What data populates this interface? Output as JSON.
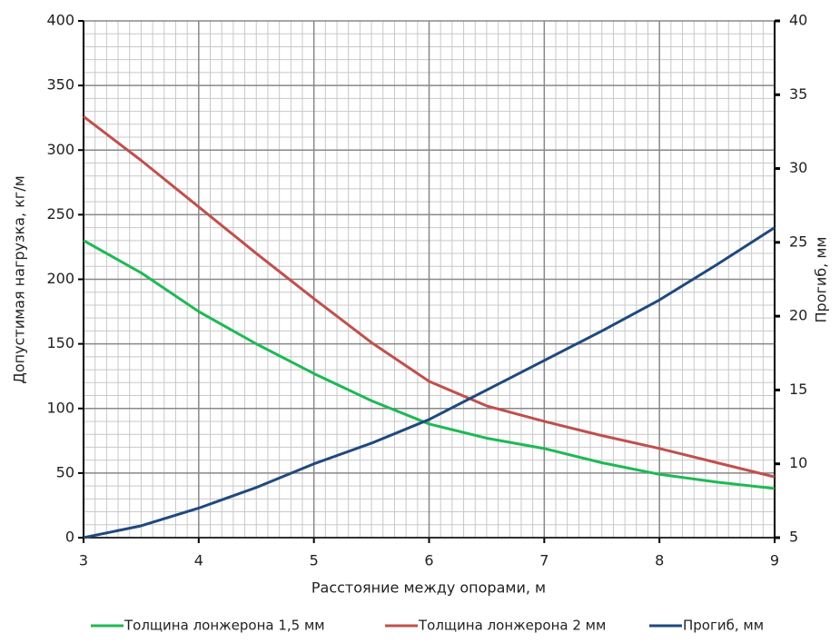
{
  "chart_data": {
    "type": "line",
    "x_label": "Расстояние между опорами, м",
    "y_label": "Допустимая нагрузка, кг/м",
    "y2_label": "Прогиб, мм",
    "x": [
      3,
      3.5,
      4,
      4.5,
      5,
      5.5,
      6,
      6.5,
      7,
      7.5,
      8,
      8.5,
      9
    ],
    "series": [
      {
        "name": "Толщина лонжерона 1,5 мм",
        "color": "#1db954",
        "values": [
          230,
          205,
          175,
          150,
          127,
          106,
          88,
          77,
          69,
          58,
          49,
          43,
          38
        ]
      },
      {
        "name": "Толщина лонжерона 2 мм",
        "color": "#c0504d",
        "values": [
          326,
          292,
          256,
          220,
          185,
          151,
          121,
          102,
          90,
          79,
          69,
          58,
          47
        ]
      },
      {
        "name": "Прогиб, мм",
        "color": "#1f497d",
        "axis": "y2",
        "values": [
          5,
          5.8,
          7,
          8.4,
          10,
          11.4,
          13,
          15,
          17,
          19,
          21.1,
          23.5,
          26
        ]
      }
    ],
    "xlim": [
      3,
      9
    ],
    "xticks": [
      3,
      4,
      5,
      6,
      7,
      8,
      9
    ],
    "ylim": [
      0,
      400
    ],
    "yticks": [
      0,
      50,
      100,
      150,
      200,
      250,
      300,
      350,
      400
    ],
    "y2lim": [
      5,
      40
    ],
    "y2ticks": [
      5,
      10,
      15,
      20,
      25,
      30,
      35,
      40
    ],
    "grid": true,
    "legend": "bottom"
  }
}
